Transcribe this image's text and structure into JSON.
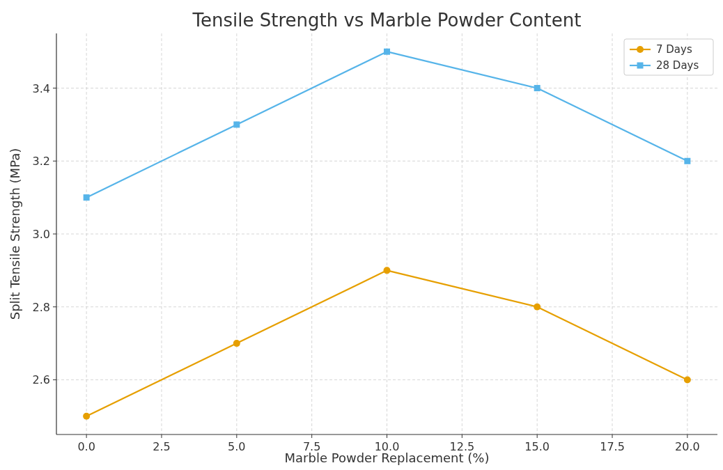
{
  "chart_data": {
    "type": "line",
    "title": "Tensile Strength vs Marble Powder Content",
    "xlabel": "Marble Powder Replacement (%)",
    "ylabel": "Split Tensile Strength (MPa)",
    "x": [
      0,
      5,
      10,
      15,
      20
    ],
    "series": [
      {
        "name": "7 Days",
        "color": "#e69f00",
        "marker": "circle",
        "values": [
          2.5,
          2.7,
          2.9,
          2.8,
          2.6
        ]
      },
      {
        "name": "28 Days",
        "color": "#56b4e9",
        "marker": "square",
        "values": [
          3.1,
          3.3,
          3.5,
          3.4,
          3.2
        ]
      }
    ],
    "xlim": [
      -1,
      21
    ],
    "xticks": [
      {
        "value": 0,
        "label": "0.0"
      },
      {
        "value": 2.5,
        "label": "2.5"
      },
      {
        "value": 5,
        "label": "5.0"
      },
      {
        "value": 7.5,
        "label": "7.5"
      },
      {
        "value": 10,
        "label": "10.0"
      },
      {
        "value": 12.5,
        "label": "12.5"
      },
      {
        "value": 15,
        "label": "15.0"
      },
      {
        "value": 17.5,
        "label": "17.5"
      },
      {
        "value": 20,
        "label": "20.0"
      }
    ],
    "ylim": [
      2.45,
      3.55
    ],
    "yticks": [
      {
        "value": 2.6,
        "label": "2.6"
      },
      {
        "value": 2.8,
        "label": "2.8"
      },
      {
        "value": 3.0,
        "label": "3.0"
      },
      {
        "value": 3.2,
        "label": "3.2"
      },
      {
        "value": 3.4,
        "label": "3.4"
      }
    ],
    "grid": true,
    "legend": "top right",
    "line_style": "solid"
  }
}
